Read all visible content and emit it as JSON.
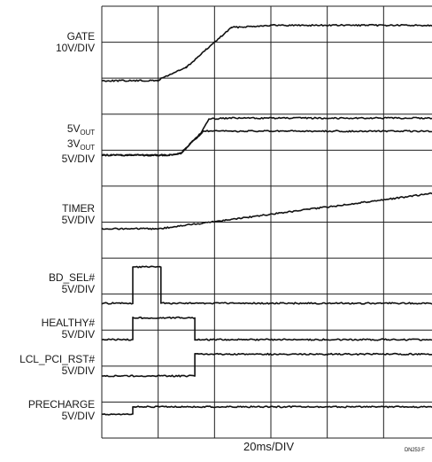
{
  "chart_data": {
    "type": "line",
    "title": "",
    "xlabel": "20ms/DIV",
    "x_divisions": 6,
    "y_divisions": 12,
    "grid": true,
    "traces": [
      {
        "name": "GATE",
        "scale": "10V/DIV",
        "points": [
          [
            0,
            0
          ],
          [
            1,
            0
          ],
          [
            1.05,
            0.05
          ],
          [
            1.5,
            0.3
          ],
          [
            1.85,
            0.7
          ],
          [
            2.3,
            1.2
          ],
          [
            3,
            1.25
          ],
          [
            6,
            1.25
          ]
        ]
      },
      {
        "name": "5VOUT",
        "scale": "5V/DIV",
        "points": [
          [
            0,
            0
          ],
          [
            1.2,
            0
          ],
          [
            1.4,
            0.05
          ],
          [
            1.75,
            0.6
          ],
          [
            1.9,
            1.0
          ],
          [
            2.2,
            1.02
          ],
          [
            6,
            1.02
          ]
        ]
      },
      {
        "name": "3VOUT",
        "scale": "5V/DIV",
        "points": [
          [
            0,
            0
          ],
          [
            1.2,
            0
          ],
          [
            1.4,
            0.05
          ],
          [
            1.7,
            0.5
          ],
          [
            1.8,
            0.66
          ],
          [
            6,
            0.66
          ]
        ]
      },
      {
        "name": "TIMER",
        "scale": "5V/DIV",
        "points": [
          [
            0,
            0
          ],
          [
            1,
            0
          ],
          [
            6,
            1.0
          ]
        ]
      },
      {
        "name": "BD_SEL#",
        "scale": "5V/DIV",
        "points": [
          [
            0,
            0
          ],
          [
            0.55,
            0
          ],
          [
            0.55,
            1
          ],
          [
            1.05,
            1
          ],
          [
            1.05,
            0
          ],
          [
            6,
            0
          ]
        ]
      },
      {
        "name": "HEALTHY#",
        "scale": "5V/DIV",
        "points": [
          [
            0,
            0
          ],
          [
            0.55,
            0
          ],
          [
            0.55,
            0.6
          ],
          [
            1.65,
            0.6
          ],
          [
            1.65,
            0
          ],
          [
            6,
            0
          ]
        ]
      },
      {
        "name": "LCL_PCI_RST#",
        "scale": "5V/DIV",
        "points": [
          [
            0,
            0
          ],
          [
            1.65,
            0
          ],
          [
            1.65,
            0.6
          ],
          [
            6,
            0.6
          ]
        ]
      },
      {
        "name": "PRECHARGE",
        "scale": "5V/DIV",
        "points": [
          [
            0,
            0
          ],
          [
            0.55,
            0
          ],
          [
            0.55,
            0.2
          ],
          [
            6,
            0.2
          ]
        ]
      }
    ]
  },
  "labels": {
    "gate": "GATE",
    "gate_scale": "10V/DIV",
    "v5out_pre": "5V",
    "v3out_pre": "3V",
    "out_sub": "OUT",
    "vout_scale": "5V/DIV",
    "timer": "TIMER",
    "timer_scale": "5V/DIV",
    "bdsel": "BD_SEL#",
    "bdsel_scale": "5V/DIV",
    "healthy": "HEALTHY#",
    "healthy_scale": "5V/DIV",
    "rst": "LCL_PCI_RST#",
    "rst_scale": "5V/DIV",
    "precharge": "PRECHARGE",
    "precharge_scale": "5V/DIV"
  },
  "timebase": "20ms/DIV",
  "figure_id": "DN253 F"
}
